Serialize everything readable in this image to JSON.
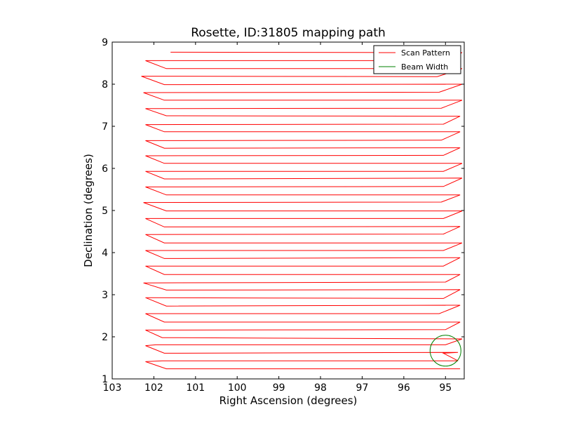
{
  "chart_data": {
    "type": "line",
    "title": "Rosette, ID:31805 mapping path",
    "xlabel": "Right Ascension (degrees)",
    "ylabel": "Declination (degrees)",
    "xlim": [
      103,
      94.55
    ],
    "ylim": [
      1,
      9
    ],
    "x_ticks": [
      103,
      102,
      101,
      100,
      99,
      98,
      97,
      96,
      95
    ],
    "y_ticks": [
      1,
      2,
      3,
      4,
      5,
      6,
      7,
      8,
      9
    ],
    "x_tick_labels": [
      "103",
      "102",
      "101",
      "100",
      "99",
      "98",
      "97",
      "96",
      "95"
    ],
    "y_tick_labels": [
      "1",
      "2",
      "3",
      "4",
      "5",
      "6",
      "7",
      "8",
      "9"
    ],
    "grid": false,
    "legend_position": "top-right",
    "series": [
      {
        "name": "Scan Pattern",
        "color": "#ff0000",
        "points": [
          [
            94.65,
            1.24
          ],
          [
            101.7,
            1.24
          ],
          [
            102.2,
            1.41
          ],
          [
            101.8,
            1.43
          ],
          [
            94.7,
            1.43
          ],
          [
            95.05,
            1.61
          ],
          [
            94.7,
            1.63
          ],
          [
            101.75,
            1.61
          ],
          [
            102.2,
            1.79
          ],
          [
            101.95,
            1.81
          ],
          [
            95.0,
            1.81
          ],
          [
            94.6,
            1.95
          ],
          [
            101.8,
            1.98
          ],
          [
            102.2,
            2.16
          ],
          [
            95.0,
            2.17
          ],
          [
            94.65,
            2.35
          ],
          [
            101.75,
            2.35
          ],
          [
            102.2,
            2.55
          ],
          [
            95.15,
            2.55
          ],
          [
            94.65,
            2.75
          ],
          [
            101.7,
            2.73
          ],
          [
            102.2,
            2.93
          ],
          [
            95.05,
            2.91
          ],
          [
            94.65,
            3.12
          ],
          [
            101.7,
            3.11
          ],
          [
            102.25,
            3.28
          ],
          [
            95.0,
            3.3
          ],
          [
            94.65,
            3.48
          ],
          [
            101.75,
            3.48
          ],
          [
            102.2,
            3.68
          ],
          [
            95.05,
            3.68
          ],
          [
            94.65,
            3.88
          ],
          [
            101.75,
            3.86
          ],
          [
            102.2,
            4.05
          ],
          [
            95.05,
            4.05
          ],
          [
            94.6,
            4.23
          ],
          [
            101.75,
            4.23
          ],
          [
            102.2,
            4.43
          ],
          [
            95.05,
            4.44
          ],
          [
            94.65,
            4.62
          ],
          [
            101.75,
            4.61
          ],
          [
            102.2,
            4.81
          ],
          [
            95.05,
            4.81
          ],
          [
            94.6,
            4.99
          ],
          [
            101.7,
            4.99
          ],
          [
            102.25,
            5.19
          ],
          [
            95.1,
            5.2
          ],
          [
            94.65,
            5.37
          ],
          [
            101.7,
            5.37
          ],
          [
            102.2,
            5.56
          ],
          [
            95.05,
            5.57
          ],
          [
            94.6,
            5.77
          ],
          [
            101.75,
            5.75
          ],
          [
            102.2,
            5.93
          ],
          [
            95.05,
            5.93
          ],
          [
            94.6,
            6.12
          ],
          [
            101.75,
            6.12
          ],
          [
            102.2,
            6.3
          ],
          [
            95.05,
            6.31
          ],
          [
            94.65,
            6.49
          ],
          [
            101.75,
            6.48
          ],
          [
            102.2,
            6.66
          ],
          [
            95.1,
            6.67
          ],
          [
            94.65,
            6.87
          ],
          [
            101.75,
            6.87
          ],
          [
            102.2,
            7.04
          ],
          [
            95.05,
            7.05
          ],
          [
            94.65,
            7.24
          ],
          [
            101.7,
            7.25
          ],
          [
            102.2,
            7.42
          ],
          [
            95.1,
            7.43
          ],
          [
            94.6,
            7.62
          ],
          [
            101.75,
            7.62
          ],
          [
            102.25,
            7.8
          ],
          [
            95.15,
            7.81
          ],
          [
            94.6,
            8.0
          ],
          [
            101.75,
            7.99
          ],
          [
            102.3,
            8.19
          ],
          [
            95.2,
            8.18
          ],
          [
            94.6,
            8.37
          ],
          [
            101.7,
            8.37
          ],
          [
            102.2,
            8.56
          ],
          [
            95.1,
            8.56
          ],
          [
            94.6,
            8.75
          ],
          [
            101.6,
            8.76
          ]
        ]
      },
      {
        "name": "Beam Width",
        "color": "#008000",
        "circle_center": [
          95.0,
          1.67
        ],
        "circle_radius_x": 0.37
      }
    ]
  }
}
